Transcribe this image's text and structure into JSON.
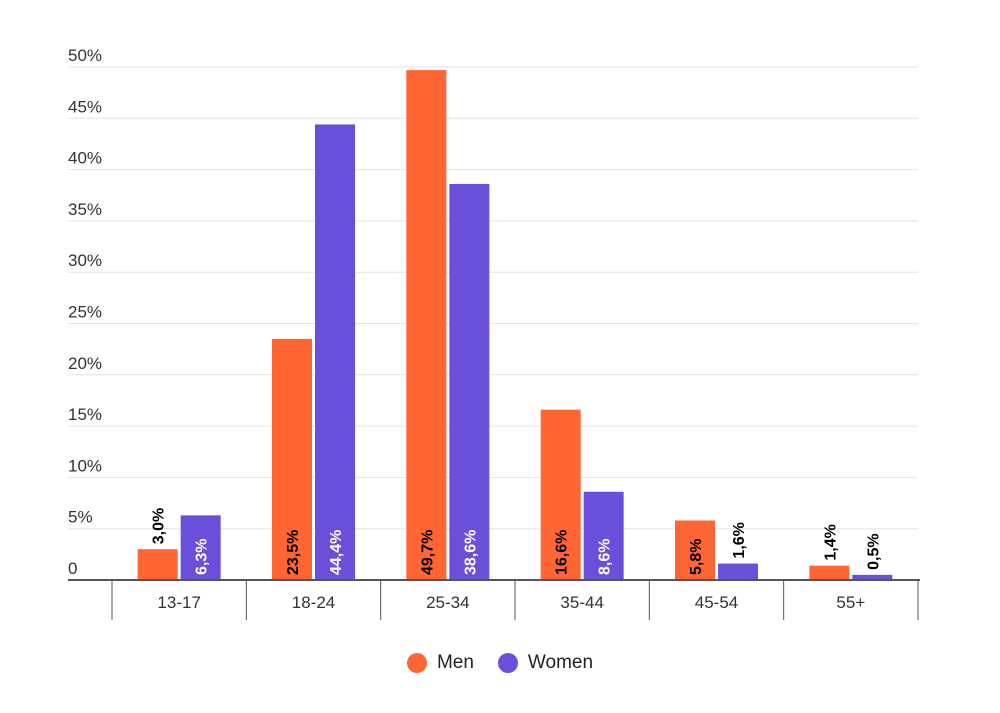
{
  "chart_data": {
    "type": "bar",
    "categories": [
      "13-17",
      "18-24",
      "25-34",
      "35-44",
      "45-54",
      "55+"
    ],
    "series": [
      {
        "name": "Men",
        "color": "#ff6633",
        "values": [
          3.0,
          23.5,
          49.7,
          16.6,
          5.8,
          1.4
        ],
        "labels": [
          "3,0%",
          "23,5%",
          "49,7%",
          "16,6%",
          "5,8%",
          "1,4%"
        ]
      },
      {
        "name": "Women",
        "color": "#6a4fdb",
        "values": [
          6.3,
          44.4,
          38.6,
          8.6,
          1.6,
          0.5
        ],
        "labels": [
          "6,3%",
          "44,4%",
          "38,6%",
          "8,6%",
          "1,6%",
          "0,5%"
        ]
      }
    ],
    "yticks": [
      0,
      5,
      10,
      15,
      20,
      25,
      30,
      35,
      40,
      45,
      50
    ],
    "ytick_labels": [
      "0",
      "5%",
      "10%",
      "15%",
      "20%",
      "25%",
      "30%",
      "35%",
      "40%",
      "45%",
      "50%"
    ],
    "ylim": [
      0,
      50
    ],
    "grid": true,
    "legend_position": "bottom-center"
  }
}
